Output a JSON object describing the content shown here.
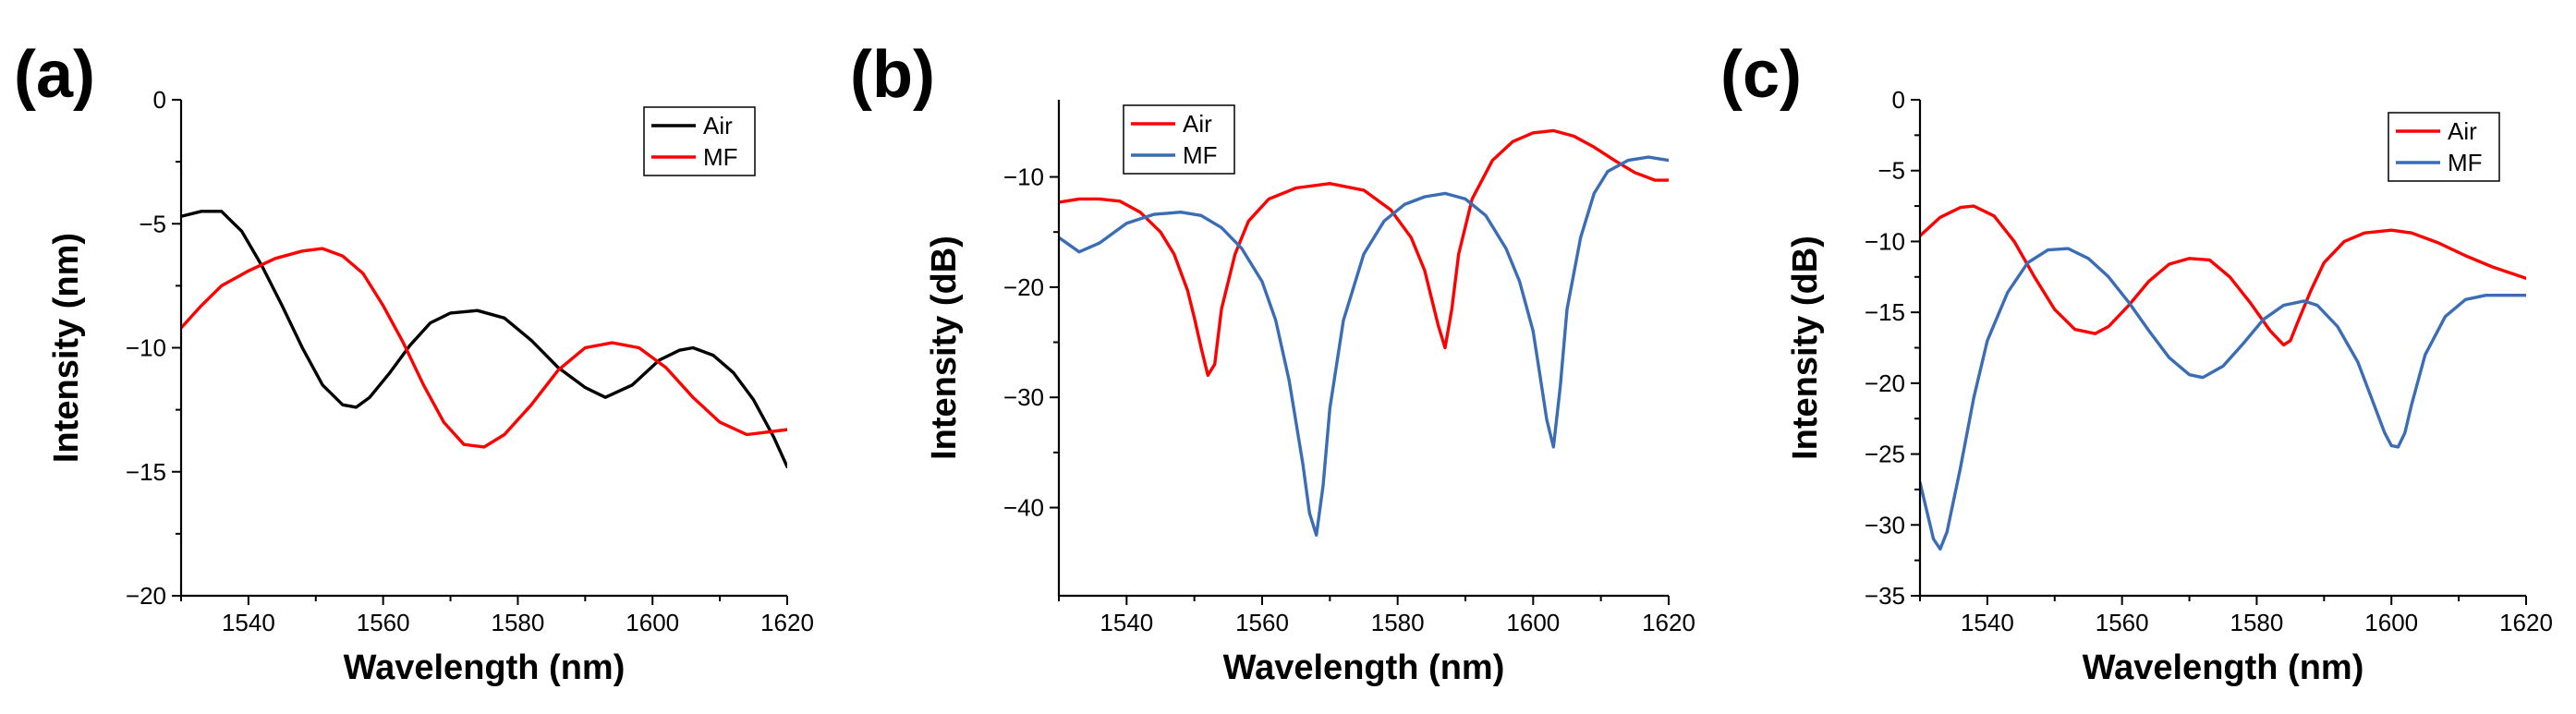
{
  "chart_data": [
    {
      "panel": "(a)",
      "type": "line",
      "xlabel": "Wavelength (nm)",
      "ylabel": "Intensity (nm)",
      "xlim": [
        1530,
        1620
      ],
      "ylim": [
        -20,
        0
      ],
      "xticks": [
        1540,
        1560,
        1580,
        1600,
        1620
      ],
      "yticks": [
        0,
        -5,
        -10,
        -15,
        -20
      ],
      "legend": "top-right",
      "series": [
        {
          "name": "Air",
          "color": "#000000",
          "x": [
            1530,
            1533,
            1536,
            1539,
            1542,
            1545,
            1548,
            1551,
            1554,
            1556,
            1558,
            1561,
            1564,
            1567,
            1570,
            1574,
            1578,
            1582,
            1586,
            1590,
            1593,
            1597,
            1601,
            1604,
            1606,
            1609,
            1612,
            1615,
            1618,
            1620
          ],
          "y": [
            -4.7,
            -4.5,
            -4.5,
            -5.3,
            -6.7,
            -8.3,
            -10.0,
            -11.5,
            -12.3,
            -12.4,
            -12.0,
            -11.0,
            -9.9,
            -9.0,
            -8.6,
            -8.5,
            -8.8,
            -9.7,
            -10.8,
            -11.6,
            -12.0,
            -11.5,
            -10.5,
            -10.1,
            -10.0,
            -10.3,
            -11.0,
            -12.1,
            -13.6,
            -14.8
          ]
        },
        {
          "name": "MF",
          "color": "#ff0000",
          "x": [
            1530,
            1533,
            1536,
            1540,
            1544,
            1548,
            1551,
            1554,
            1557,
            1560,
            1563,
            1566,
            1569,
            1572,
            1575,
            1578,
            1582,
            1586,
            1590,
            1594,
            1598,
            1602,
            1606,
            1610,
            1614,
            1617,
            1620
          ],
          "y": [
            -9.2,
            -8.3,
            -7.5,
            -6.9,
            -6.4,
            -6.1,
            -6.0,
            -6.3,
            -7.0,
            -8.3,
            -9.8,
            -11.5,
            -13.0,
            -13.9,
            -14.0,
            -13.5,
            -12.3,
            -10.9,
            -10.0,
            -9.8,
            -10.0,
            -10.8,
            -12.0,
            -13.0,
            -13.5,
            -13.4,
            -13.3
          ]
        }
      ]
    },
    {
      "panel": "(b)",
      "type": "line",
      "xlabel": "Wavelength (nm)",
      "ylabel": "Intensity (dB)",
      "xlim": [
        1530,
        1620
      ],
      "ylim": [
        -48,
        -3
      ],
      "xticks": [
        1540,
        1560,
        1580,
        1600,
        1620
      ],
      "yticks": [
        -10,
        -20,
        -30,
        -40
      ],
      "legend": "top-left",
      "series": [
        {
          "name": "Air",
          "color": "#ff0000",
          "x": [
            1530,
            1533,
            1536,
            1539,
            1542,
            1545,
            1547,
            1549,
            1550,
            1551,
            1552,
            1553,
            1554,
            1556,
            1558,
            1561,
            1565,
            1570,
            1575,
            1579,
            1582,
            1584,
            1585,
            1586,
            1587,
            1588,
            1589,
            1591,
            1594,
            1597,
            1600,
            1603,
            1606,
            1609,
            1612,
            1615,
            1618,
            1620
          ],
          "y": [
            -12.3,
            -12.0,
            -12.0,
            -12.2,
            -13.2,
            -15.0,
            -17.0,
            -20.3,
            -22.8,
            -25.5,
            -28.0,
            -27.0,
            -22.0,
            -17.0,
            -14.0,
            -12.0,
            -11.0,
            -10.6,
            -11.2,
            -13.0,
            -15.5,
            -18.5,
            -21.0,
            -23.5,
            -25.5,
            -22.0,
            -17.0,
            -12.0,
            -8.5,
            -6.8,
            -6.0,
            -5.8,
            -6.3,
            -7.3,
            -8.5,
            -9.6,
            -10.3,
            -10.3
          ]
        },
        {
          "name": "MF",
          "color": "#3a6db5",
          "x": [
            1530,
            1533,
            1536,
            1540,
            1544,
            1548,
            1551,
            1554,
            1557,
            1560,
            1562,
            1564,
            1566,
            1567,
            1568,
            1569,
            1570,
            1572,
            1575,
            1578,
            1581,
            1584,
            1587,
            1590,
            1593,
            1596,
            1598,
            1600,
            1601,
            1602,
            1603,
            1604,
            1605,
            1607,
            1609,
            1611,
            1614,
            1617,
            1620
          ],
          "y": [
            -15.5,
            -16.8,
            -16.0,
            -14.2,
            -13.4,
            -13.2,
            -13.5,
            -14.6,
            -16.5,
            -19.5,
            -23.0,
            -28.5,
            -36.0,
            -40.5,
            -42.5,
            -38.0,
            -31.0,
            -23.0,
            -17.0,
            -14.0,
            -12.5,
            -11.8,
            -11.5,
            -12.0,
            -13.5,
            -16.5,
            -19.5,
            -24.0,
            -28.0,
            -32.0,
            -34.5,
            -29.0,
            -22.0,
            -15.5,
            -11.5,
            -9.5,
            -8.5,
            -8.2,
            -8.5
          ]
        }
      ]
    },
    {
      "panel": "(c)",
      "type": "line",
      "xlabel": "Wavelength (nm)",
      "ylabel": "Intensity (dB)",
      "xlim": [
        1530,
        1620
      ],
      "ylim": [
        -35,
        0
      ],
      "xticks": [
        1540,
        1560,
        1580,
        1600,
        1620
      ],
      "yticks": [
        0,
        -5,
        -10,
        -15,
        -20,
        -25,
        -30,
        -35
      ],
      "legend": "top-right",
      "series": [
        {
          "name": "Air",
          "color": "#ff0000",
          "x": [
            1530,
            1533,
            1536,
            1538,
            1541,
            1544,
            1547,
            1550,
            1553,
            1556,
            1558,
            1561,
            1564,
            1567,
            1570,
            1573,
            1576,
            1579,
            1582,
            1584,
            1585,
            1586,
            1588,
            1590,
            1593,
            1596,
            1600,
            1603,
            1607,
            1611,
            1615,
            1620
          ],
          "y": [
            -9.6,
            -8.3,
            -7.6,
            -7.5,
            -8.2,
            -10.0,
            -12.5,
            -14.8,
            -16.2,
            -16.5,
            -16.0,
            -14.5,
            -12.8,
            -11.6,
            -11.2,
            -11.3,
            -12.5,
            -14.3,
            -16.3,
            -17.3,
            -17.0,
            -15.8,
            -13.5,
            -11.5,
            -10.0,
            -9.4,
            -9.2,
            -9.4,
            -10.1,
            -11.0,
            -11.8,
            -12.6
          ]
        },
        {
          "name": "MF",
          "color": "#3a6db5",
          "x": [
            1530,
            1531,
            1532,
            1533,
            1534,
            1536,
            1538,
            1540,
            1543,
            1546,
            1549,
            1552,
            1555,
            1558,
            1561,
            1564,
            1567,
            1570,
            1572,
            1575,
            1578,
            1581,
            1584,
            1587,
            1589,
            1592,
            1595,
            1597,
            1599,
            1600,
            1601,
            1602,
            1603,
            1605,
            1608,
            1611,
            1614,
            1617,
            1620
          ],
          "y": [
            -27.0,
            -29.0,
            -31.0,
            -31.7,
            -30.5,
            -26.0,
            -21.0,
            -17.0,
            -13.6,
            -11.5,
            -10.6,
            -10.5,
            -11.2,
            -12.5,
            -14.3,
            -16.3,
            -18.2,
            -19.4,
            -19.6,
            -18.8,
            -17.2,
            -15.5,
            -14.5,
            -14.2,
            -14.5,
            -16.0,
            -18.5,
            -21.0,
            -23.5,
            -24.4,
            -24.5,
            -23.5,
            -21.5,
            -18.0,
            -15.3,
            -14.1,
            -13.8,
            -13.8,
            -13.8
          ]
        }
      ]
    }
  ]
}
